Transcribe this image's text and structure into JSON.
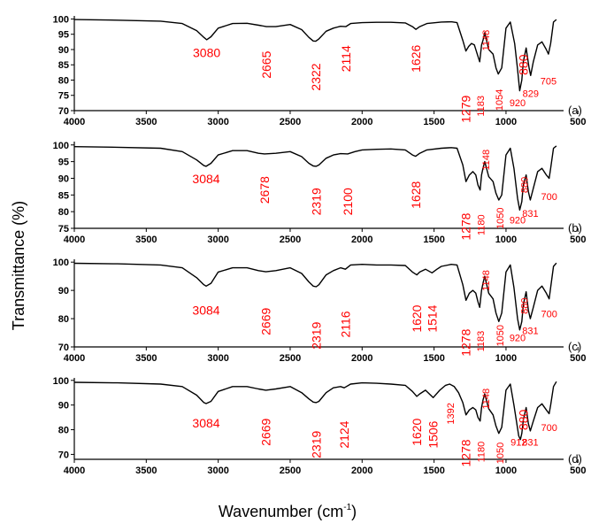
{
  "chart_data": {
    "type": "line",
    "ylabel": "Transmittance (%)",
    "xlabel_main": "Wavenumber (cm",
    "xlabel_sup": "-1",
    "xlabel_end": ")",
    "xlim": [
      4000,
      600
    ],
    "x_ticks": [
      4000,
      3500,
      3000,
      2500,
      2000,
      1500,
      1000,
      500
    ],
    "line_color": "#000000",
    "annotation_color": "#ff0000",
    "panels": [
      {
        "label": "(a)",
        "ylim": [
          70,
          101
        ],
        "y_ticks": [
          70,
          75,
          80,
          85,
          90,
          95,
          100
        ],
        "x": [
          4000,
          3700,
          3400,
          3250,
          3150,
          3100,
          3080,
          3050,
          3000,
          2900,
          2800,
          2700,
          2665,
          2600,
          2500,
          2420,
          2370,
          2340,
          2322,
          2300,
          2250,
          2200,
          2150,
          2114,
          2080,
          2000,
          1900,
          1800,
          1700,
          1650,
          1626,
          1600,
          1550,
          1450,
          1380,
          1340,
          1300,
          1279,
          1260,
          1240,
          1220,
          1200,
          1183,
          1170,
          1160,
          1148,
          1120,
          1090,
          1070,
          1054,
          1030,
          1000,
          970,
          940,
          920,
          905,
          890,
          880,
          860,
          840,
          829,
          810,
          780,
          750,
          720,
          705,
          690,
          670,
          650
        ],
        "y": [
          99.8,
          99.6,
          99.3,
          98.5,
          96.2,
          94.0,
          93.2,
          94.2,
          97.0,
          98.5,
          98.6,
          97.8,
          97.5,
          97.5,
          98.2,
          96.5,
          94.0,
          92.8,
          92.7,
          93.5,
          96.0,
          97.0,
          97.6,
          97.5,
          98.5,
          98.8,
          98.9,
          98.9,
          98.7,
          97.5,
          96.6,
          97.5,
          98.5,
          99.0,
          99.1,
          98.8,
          93.0,
          89.5,
          91.0,
          92.0,
          91.5,
          88.5,
          86.0,
          91.5,
          93.0,
          95.5,
          90.0,
          88.5,
          84.0,
          82.0,
          84.0,
          97.0,
          99.0,
          92.0,
          83.5,
          76.5,
          80.0,
          86.0,
          90.5,
          84.0,
          81.5,
          86.0,
          91.5,
          92.5,
          90.0,
          88.5,
          92.0,
          99.0,
          99.8
        ]
      },
      {
        "label": "(b)",
        "ylim": [
          75,
          101
        ],
        "y_ticks": [
          75,
          80,
          85,
          90,
          95,
          100
        ],
        "x": [
          4000,
          3700,
          3400,
          3250,
          3150,
          3100,
          3084,
          3050,
          3000,
          2900,
          2800,
          2720,
          2678,
          2600,
          2500,
          2420,
          2370,
          2340,
          2319,
          2300,
          2250,
          2200,
          2150,
          2100,
          2050,
          2000,
          1900,
          1800,
          1700,
          1650,
          1628,
          1600,
          1550,
          1450,
          1380,
          1340,
          1300,
          1278,
          1255,
          1230,
          1210,
          1195,
          1180,
          1170,
          1160,
          1148,
          1120,
          1090,
          1070,
          1050,
          1030,
          1000,
          970,
          945,
          920,
          905,
          890,
          880,
          860,
          845,
          831,
          810,
          780,
          750,
          720,
          700,
          690,
          670,
          650
        ],
        "y": [
          99.5,
          99.3,
          99.0,
          98.0,
          95.5,
          93.8,
          93.6,
          94.5,
          97.0,
          98.3,
          98.3,
          97.5,
          97.3,
          97.5,
          98.0,
          96.5,
          94.5,
          93.7,
          93.6,
          94.0,
          96.0,
          97.0,
          97.4,
          97.3,
          98.0,
          98.5,
          98.7,
          98.8,
          98.5,
          97.0,
          96.6,
          97.5,
          98.5,
          99.0,
          99.2,
          99.0,
          94.0,
          89.0,
          91.0,
          92.0,
          91.0,
          88.0,
          86.5,
          91.0,
          93.0,
          95.0,
          90.5,
          89.0,
          85.5,
          83.5,
          85.0,
          97.0,
          99.0,
          93.0,
          84.0,
          80.5,
          83.0,
          88.0,
          91.0,
          86.0,
          83.5,
          87.0,
          92.0,
          93.0,
          91.0,
          90.0,
          93.0,
          99.0,
          99.7
        ]
      },
      {
        "label": "(c)",
        "ylim": [
          70,
          101
        ],
        "y_ticks": [
          70,
          80,
          90,
          100
        ],
        "x": [
          4000,
          3700,
          3400,
          3250,
          3150,
          3100,
          3084,
          3050,
          3000,
          2900,
          2800,
          2720,
          2669,
          2600,
          2500,
          2420,
          2370,
          2340,
          2319,
          2300,
          2250,
          2200,
          2150,
          2116,
          2080,
          2000,
          1900,
          1800,
          1700,
          1650,
          1620,
          1600,
          1560,
          1514,
          1480,
          1450,
          1380,
          1340,
          1300,
          1278,
          1255,
          1230,
          1210,
          1195,
          1183,
          1170,
          1160,
          1148,
          1120,
          1090,
          1070,
          1050,
          1030,
          1000,
          970,
          945,
          920,
          905,
          890,
          880,
          860,
          845,
          831,
          810,
          780,
          750,
          720,
          700,
          690,
          670,
          650
        ],
        "y": [
          99.6,
          99.4,
          99.0,
          98.0,
          94.5,
          92.0,
          91.5,
          92.5,
          96.5,
          98.0,
          98.0,
          97.0,
          96.6,
          97.0,
          98.0,
          96.0,
          93.0,
          91.5,
          91.3,
          92.0,
          95.5,
          97.0,
          98.0,
          97.5,
          99.0,
          99.2,
          99.0,
          99.0,
          98.8,
          96.5,
          95.5,
          96.5,
          97.5,
          96.2,
          97.5,
          98.5,
          99.2,
          99.0,
          92.0,
          86.5,
          89.0,
          90.0,
          89.0,
          86.0,
          84.0,
          90.0,
          92.5,
          95.0,
          89.0,
          87.0,
          82.0,
          79.0,
          82.0,
          96.5,
          99.0,
          91.0,
          80.0,
          76.0,
          79.0,
          85.0,
          89.5,
          83.0,
          80.0,
          84.0,
          90.0,
          91.5,
          89.0,
          87.0,
          91.0,
          98.5,
          99.7
        ]
      },
      {
        "label": "(d)",
        "ylim": [
          68,
          101
        ],
        "y_ticks": [
          70,
          80,
          90,
          100
        ],
        "x": [
          4000,
          3700,
          3400,
          3250,
          3150,
          3100,
          3084,
          3050,
          3000,
          2900,
          2800,
          2720,
          2669,
          2600,
          2500,
          2420,
          2370,
          2340,
          2319,
          2300,
          2250,
          2200,
          2150,
          2124,
          2080,
          2000,
          1900,
          1800,
          1700,
          1650,
          1620,
          1600,
          1560,
          1506,
          1460,
          1420,
          1392,
          1360,
          1330,
          1300,
          1278,
          1255,
          1230,
          1210,
          1195,
          1180,
          1170,
          1160,
          1148,
          1120,
          1090,
          1070,
          1050,
          1030,
          1000,
          970,
          945,
          912,
          900,
          890,
          880,
          860,
          845,
          831,
          810,
          780,
          750,
          720,
          700,
          690,
          670,
          650
        ],
        "y": [
          99.2,
          99.0,
          98.5,
          97.5,
          94.0,
          91.0,
          90.6,
          91.5,
          95.5,
          97.5,
          97.5,
          96.5,
          96.0,
          96.5,
          97.5,
          95.0,
          92.5,
          91.2,
          91.0,
          91.5,
          95.0,
          97.0,
          97.5,
          97.0,
          98.5,
          99.0,
          98.8,
          98.5,
          98.0,
          95.5,
          93.5,
          94.5,
          96.0,
          93.0,
          96.0,
          98.0,
          98.5,
          97.5,
          95.0,
          91.0,
          86.0,
          88.0,
          89.0,
          88.0,
          85.0,
          83.5,
          89.0,
          92.0,
          94.5,
          88.5,
          86.0,
          81.5,
          78.5,
          81.0,
          96.0,
          98.5,
          90.0,
          77.5,
          76.0,
          78.5,
          84.0,
          89.0,
          82.5,
          79.5,
          83.5,
          89.0,
          90.5,
          88.0,
          86.5,
          90.0,
          97.5,
          99.5
        ]
      }
    ],
    "annotations": [
      [
        {
          "text": "3080",
          "x": 3080,
          "y": 87.5,
          "rot": 0,
          "size": "l"
        },
        {
          "text": "2665",
          "x": 2665,
          "y": 85,
          "rot": -90,
          "size": "l"
        },
        {
          "text": "2322",
          "x": 2322,
          "y": 81,
          "rot": -90,
          "size": "l"
        },
        {
          "text": "2114",
          "x": 2114,
          "y": 87,
          "rot": -90,
          "size": "l"
        },
        {
          "text": "1626",
          "x": 1626,
          "y": 87,
          "rot": -90,
          "size": "l"
        },
        {
          "text": "1279",
          "x": 1279,
          "y": 70.5,
          "rot": -90,
          "size": "l"
        },
        {
          "text": "1183",
          "x": 1183,
          "y": 71.5,
          "rot": -90,
          "size": "s"
        },
        {
          "text": "1148",
          "x": 1148,
          "y": 93,
          "rot": -90,
          "size": "s"
        },
        {
          "text": "1054",
          "x": 1054,
          "y": 73.5,
          "rot": -90,
          "size": "s"
        },
        {
          "text": "920",
          "x": 920,
          "y": 71.5,
          "rot": 0,
          "size": "s"
        },
        {
          "text": "880",
          "x": 880,
          "y": 85,
          "rot": -90,
          "size": "l"
        },
        {
          "text": "829",
          "x": 829,
          "y": 74.5,
          "rot": 0,
          "size": "s"
        },
        {
          "text": "705",
          "x": 705,
          "y": 78.5,
          "rot": 0,
          "size": "s"
        }
      ],
      [
        {
          "text": "3084",
          "x": 3084,
          "y": 88.5,
          "rot": 0,
          "size": "l"
        },
        {
          "text": "2678",
          "x": 2678,
          "y": 86.5,
          "rot": -90,
          "size": "l"
        },
        {
          "text": "2319",
          "x": 2319,
          "y": 83,
          "rot": -90,
          "size": "l"
        },
        {
          "text": "2100",
          "x": 2100,
          "y": 83,
          "rot": -90,
          "size": "l"
        },
        {
          "text": "1628",
          "x": 1628,
          "y": 85,
          "rot": -90,
          "size": "l"
        },
        {
          "text": "1278",
          "x": 1278,
          "y": 75.5,
          "rot": -90,
          "size": "l"
        },
        {
          "text": "1180",
          "x": 1180,
          "y": 76,
          "rot": -90,
          "size": "s"
        },
        {
          "text": "1148",
          "x": 1148,
          "y": 95.5,
          "rot": -90,
          "size": "s"
        },
        {
          "text": "1050",
          "x": 1050,
          "y": 78,
          "rot": -90,
          "size": "s"
        },
        {
          "text": "920",
          "x": 920,
          "y": 76.5,
          "rot": 0,
          "size": "s"
        },
        {
          "text": "880",
          "x": 880,
          "y": 88,
          "rot": -90,
          "size": "s"
        },
        {
          "text": "831",
          "x": 831,
          "y": 78.5,
          "rot": 0,
          "size": "s"
        },
        {
          "text": "700",
          "x": 700,
          "y": 83.5,
          "rot": 0,
          "size": "s"
        }
      ],
      [
        {
          "text": "3084",
          "x": 3084,
          "y": 81.5,
          "rot": 0,
          "size": "l"
        },
        {
          "text": "2669",
          "x": 2669,
          "y": 79,
          "rot": -90,
          "size": "l"
        },
        {
          "text": "2319",
          "x": 2319,
          "y": 74,
          "rot": -90,
          "size": "l"
        },
        {
          "text": "2116",
          "x": 2116,
          "y": 78,
          "rot": -90,
          "size": "l"
        },
        {
          "text": "1620",
          "x": 1620,
          "y": 80,
          "rot": -90,
          "size": "l"
        },
        {
          "text": "1514",
          "x": 1514,
          "y": 80,
          "rot": -90,
          "size": "l"
        },
        {
          "text": "1278",
          "x": 1278,
          "y": 71.5,
          "rot": -90,
          "size": "l"
        },
        {
          "text": "1183",
          "x": 1183,
          "y": 72,
          "rot": -90,
          "size": "s"
        },
        {
          "text": "1148",
          "x": 1148,
          "y": 93.5,
          "rot": -90,
          "size": "s"
        },
        {
          "text": "1050",
          "x": 1050,
          "y": 74,
          "rot": -90,
          "size": "s"
        },
        {
          "text": "920",
          "x": 920,
          "y": 72,
          "rot": 0,
          "size": "s"
        },
        {
          "text": "880",
          "x": 880,
          "y": 84.5,
          "rot": -90,
          "size": "s"
        },
        {
          "text": "831",
          "x": 831,
          "y": 74.5,
          "rot": 0,
          "size": "s"
        },
        {
          "text": "700",
          "x": 700,
          "y": 80.5,
          "rot": 0,
          "size": "s"
        }
      ],
      [
        {
          "text": "3084",
          "x": 3084,
          "y": 81,
          "rot": 0,
          "size": "l"
        },
        {
          "text": "2669",
          "x": 2669,
          "y": 79,
          "rot": -90,
          "size": "l"
        },
        {
          "text": "2319",
          "x": 2319,
          "y": 74,
          "rot": -90,
          "size": "l"
        },
        {
          "text": "2124",
          "x": 2124,
          "y": 78,
          "rot": -90,
          "size": "l"
        },
        {
          "text": "1620",
          "x": 1620,
          "y": 79,
          "rot": -90,
          "size": "l"
        },
        {
          "text": "1506",
          "x": 1506,
          "y": 78,
          "rot": -90,
          "size": "l"
        },
        {
          "text": "1392",
          "x": 1392,
          "y": 86.5,
          "rot": -90,
          "size": "s"
        },
        {
          "text": "1278",
          "x": 1278,
          "y": 70.5,
          "rot": -90,
          "size": "l"
        },
        {
          "text": "1180",
          "x": 1180,
          "y": 71,
          "rot": -90,
          "size": "s"
        },
        {
          "text": "1148",
          "x": 1148,
          "y": 92.5,
          "rot": -90,
          "size": "s"
        },
        {
          "text": "1050",
          "x": 1050,
          "y": 70.5,
          "rot": -90,
          "size": "s"
        },
        {
          "text": "912",
          "x": 912,
          "y": 73.5,
          "rot": 0,
          "size": "s"
        },
        {
          "text": "831",
          "x": 831,
          "y": 73.5,
          "rot": 0,
          "size": "s"
        },
        {
          "text": "880",
          "x": 880,
          "y": 84,
          "rot": -90,
          "size": "l"
        },
        {
          "text": "700",
          "x": 700,
          "y": 79.5,
          "rot": 0,
          "size": "s"
        }
      ]
    ]
  }
}
